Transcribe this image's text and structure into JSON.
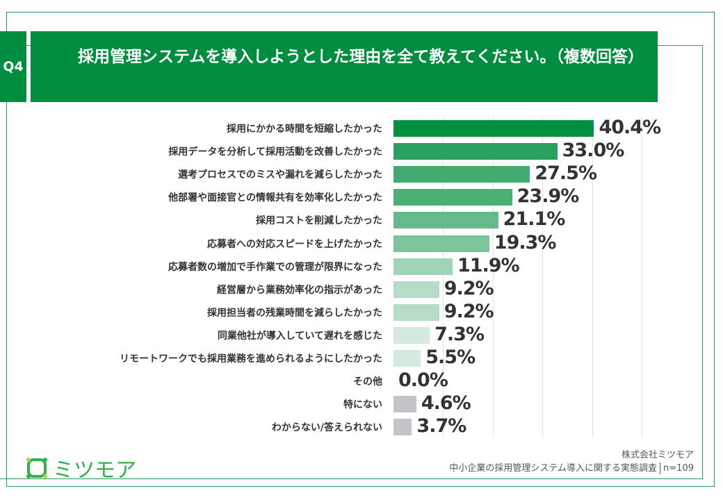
{
  "header": {
    "question_number": "Q4",
    "title": "採用管理システムを導入しようとした理由を全て教えてください。（複数回答）"
  },
  "chart_data": {
    "type": "bar",
    "orientation": "horizontal",
    "title": "採用管理システムを導入しようとした理由を全て教えてください。（複数回答）",
    "categories": [
      "採用にかかる時間を短縮したかった",
      "採用データを分析して採用活動を改善したかった",
      "選考プロセスでのミスや漏れを減らしたかった",
      "他部署や面接官との情報共有を効率化したかった",
      "採用コストを削減したかった",
      "応募者への対応スピードを上げたかった",
      "応募者数の増加で手作業での管理が限界になった",
      "経営層から業務効率化の指示があった",
      "採用担当者の残業時間を減らしたかった",
      "同業他社が導入していて遅れを感じた",
      "リモートワークでも採用業務を進められるようにしたかった",
      "その他",
      "特にない",
      "わからない/答えられない"
    ],
    "values": [
      40.4,
      33.0,
      27.5,
      23.9,
      21.1,
      19.3,
      11.9,
      9.2,
      9.2,
      7.3,
      5.5,
      0.0,
      4.6,
      3.7
    ],
    "value_labels": [
      "40.4%",
      "33.0%",
      "27.5%",
      "23.9%",
      "21.1%",
      "19.3%",
      "11.9%",
      "9.2%",
      "9.2%",
      "7.3%",
      "5.5%",
      "0.0%",
      "4.6%",
      "3.7%"
    ],
    "colors": [
      "#00913f",
      "#2a9f5e",
      "#43ab6e",
      "#4caf73",
      "#67b98a",
      "#7cc49a",
      "#9fd4b8",
      "#b6dcc8",
      "#b6dcc8",
      "#d4eadd",
      "#d4eadd",
      "#d4eadd",
      "#c4c4c8",
      "#c4c4c8"
    ],
    "xlim": [
      0,
      50
    ],
    "grid": true
  },
  "footer": {
    "logo_text": "ミツモア",
    "company": "株式会社ミツモア",
    "survey": "中小企業の採用管理システム導入に関する実態調査",
    "sample": "n=109"
  }
}
